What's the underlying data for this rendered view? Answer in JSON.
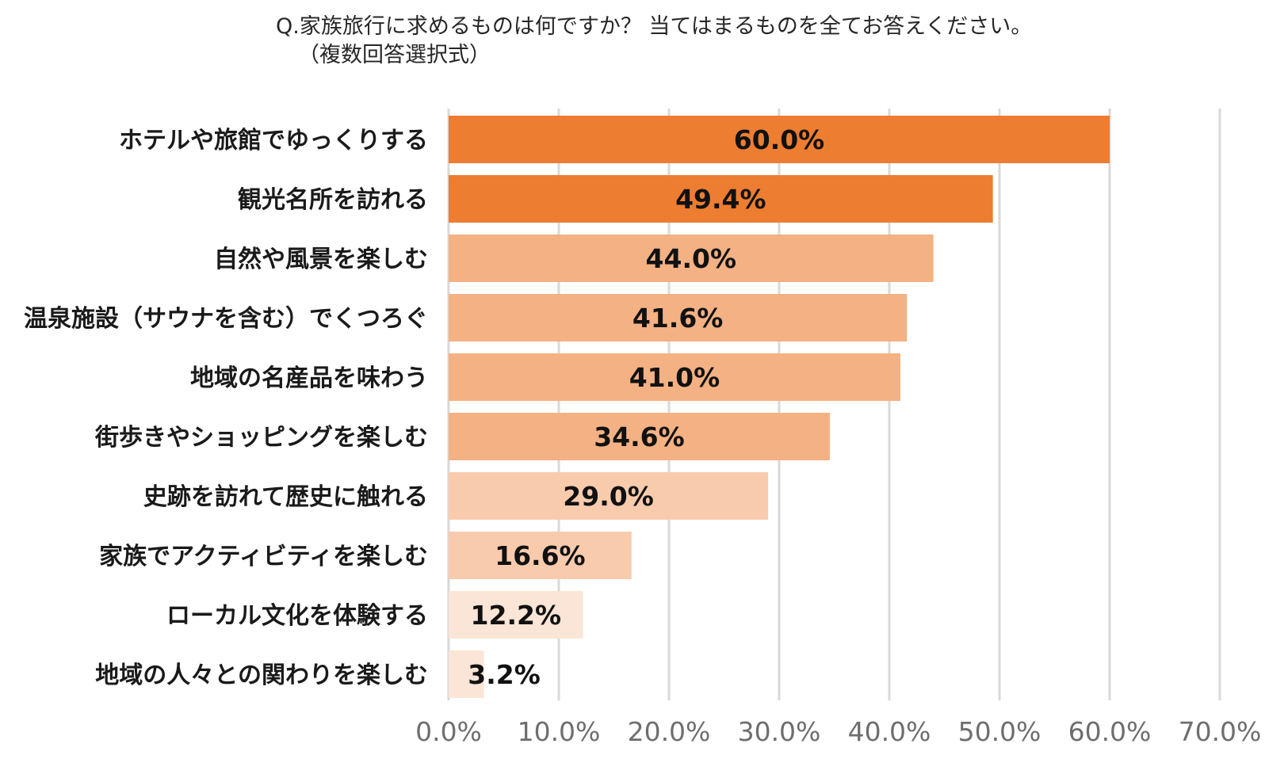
{
  "title": {
    "line1": "Q.家族旅行に求めるものは何ですか？ 当てはまるものを全てお答えください。",
    "line2": "（複数回答選択式）"
  },
  "chart_data": {
    "type": "bar",
    "orientation": "horizontal",
    "title": "Q.家族旅行に求めるものは何ですか？ 当てはまるものを全てお答えください。（複数回答選択式）",
    "xlabel": "",
    "ylabel": "",
    "xlim": [
      0,
      70
    ],
    "grid": true,
    "categories": [
      "ホテルや旅館でゆっくりする",
      "観光名所を訪れる",
      "自然や風景を楽しむ",
      "温泉施設（サウナを含む）でくつろぐ",
      "地域の名産品を味わう",
      "街歩きやショッピングを楽しむ",
      "史跡を訪れて歴史に触れる",
      "家族でアクティビティを楽しむ",
      "ローカル文化を体験する",
      "地域の人々との関わりを楽しむ"
    ],
    "values": [
      60.0,
      49.4,
      44.0,
      41.6,
      41.0,
      34.6,
      29.0,
      16.6,
      12.2,
      3.2
    ],
    "value_labels": [
      "60.0%",
      "49.4%",
      "44.0%",
      "41.6%",
      "41.0%",
      "34.6%",
      "29.0%",
      "16.6%",
      "12.2%",
      "3.2%"
    ],
    "bar_colors": [
      "#ed7d31",
      "#ed7d31",
      "#f4b183",
      "#f4b183",
      "#f4b183",
      "#f4b183",
      "#f8cbad",
      "#f8cbad",
      "#fbe5d6",
      "#fbe5d6"
    ],
    "ticks": [
      0,
      10,
      20,
      30,
      40,
      50,
      60,
      70
    ],
    "tick_labels": [
      "0.0%",
      "10.0%",
      "20.0%",
      "30.0%",
      "40.0%",
      "50.0%",
      "60.0%",
      "70.0%"
    ]
  }
}
